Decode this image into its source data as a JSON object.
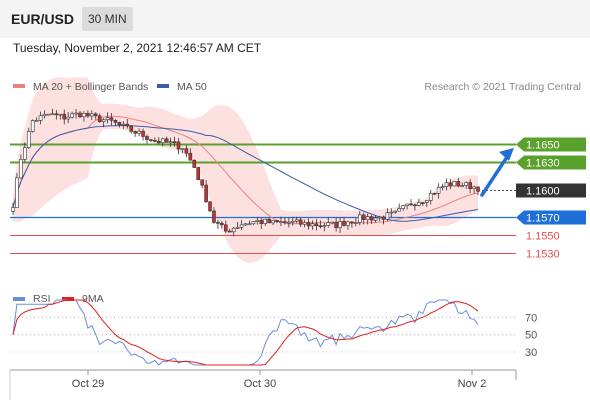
{
  "header": {
    "pair": "EUR/USD",
    "timeframe": "30 MIN"
  },
  "timestamp": "Tuesday, November 2, 2021 12:46:57 AM CET",
  "colors": {
    "ma20": "#f08080",
    "ma50": "#3a5da8",
    "bands": "#fde0e0",
    "green": "#5aa02c",
    "blue": "#1e6fd9",
    "red": "#e05050",
    "price": "#333333",
    "rsi": "#6a8fd8",
    "rsi_ma": "#e02020"
  },
  "chart_data": [
    {
      "type": "candlestick",
      "legend": [
        {
          "name": "MA 20 + Bollinger Bands",
          "color": "#f08080"
        },
        {
          "name": "MA 50",
          "color": "#3a5da8"
        }
      ],
      "watermark": "Research © 2021 Trading Central",
      "x_labels": [
        "Oct 29",
        "Oct 30",
        "Nov 2"
      ],
      "levels": [
        {
          "value": 1.165,
          "label": "1.1650",
          "kind": "resistance"
        },
        {
          "value": 1.163,
          "label": "1.1630",
          "kind": "resistance"
        },
        {
          "value": 1.16,
          "label": "1.1600",
          "kind": "last-price"
        },
        {
          "value": 1.157,
          "label": "1.1570",
          "kind": "pivot"
        },
        {
          "value": 1.155,
          "label": "1.1550",
          "kind": "support"
        },
        {
          "value": 1.153,
          "label": "1.1530",
          "kind": "support"
        }
      ],
      "price_profile": [
        [
          0,
          1.1584
        ],
        [
          2,
          1.1635
        ],
        [
          5,
          1.1676
        ],
        [
          9,
          1.1683
        ],
        [
          13,
          1.168
        ],
        [
          17,
          1.1684
        ],
        [
          21,
          1.1679
        ],
        [
          25,
          1.1675
        ],
        [
          29,
          1.1667
        ],
        [
          33,
          1.166
        ],
        [
          36,
          1.1654
        ],
        [
          40,
          1.1651
        ],
        [
          43,
          1.1647
        ],
        [
          46,
          1.1625
        ],
        [
          49,
          1.159
        ],
        [
          51,
          1.1565
        ],
        [
          54,
          1.1554
        ],
        [
          58,
          1.1562
        ],
        [
          62,
          1.1565
        ],
        [
          66,
          1.1563
        ],
        [
          70,
          1.1564
        ],
        [
          74,
          1.1562
        ],
        [
          78,
          1.1561
        ],
        [
          82,
          1.1561
        ],
        [
          85,
          1.1565
        ],
        [
          89,
          1.1569
        ],
        [
          93,
          1.1569
        ],
        [
          97,
          1.1573
        ],
        [
          101,
          1.1585
        ],
        [
          104,
          1.1589
        ],
        [
          107,
          1.1598
        ],
        [
          110,
          1.1606
        ],
        [
          113,
          1.1606
        ],
        [
          116,
          1.1604
        ],
        [
          118,
          1.1602
        ]
      ]
    },
    {
      "type": "line",
      "legend": [
        {
          "name": "RSI",
          "color": "#6a8fd8"
        },
        {
          "name": "9MA",
          "color": "#e02020"
        }
      ],
      "y_ticks": [
        70,
        50,
        30
      ],
      "ylim": [
        15,
        90
      ]
    }
  ]
}
